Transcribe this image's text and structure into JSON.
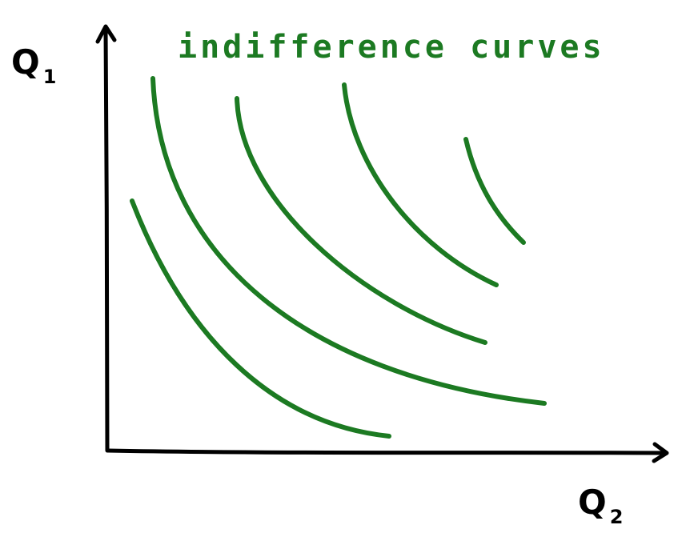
{
  "title": "indifference curves",
  "y_axis": {
    "letter": "Q",
    "subscript": "1"
  },
  "x_axis": {
    "letter": "Q",
    "subscript": "2"
  },
  "colors": {
    "curves": "#1c7a22",
    "axes": "#000000"
  },
  "curve_count": 5
}
